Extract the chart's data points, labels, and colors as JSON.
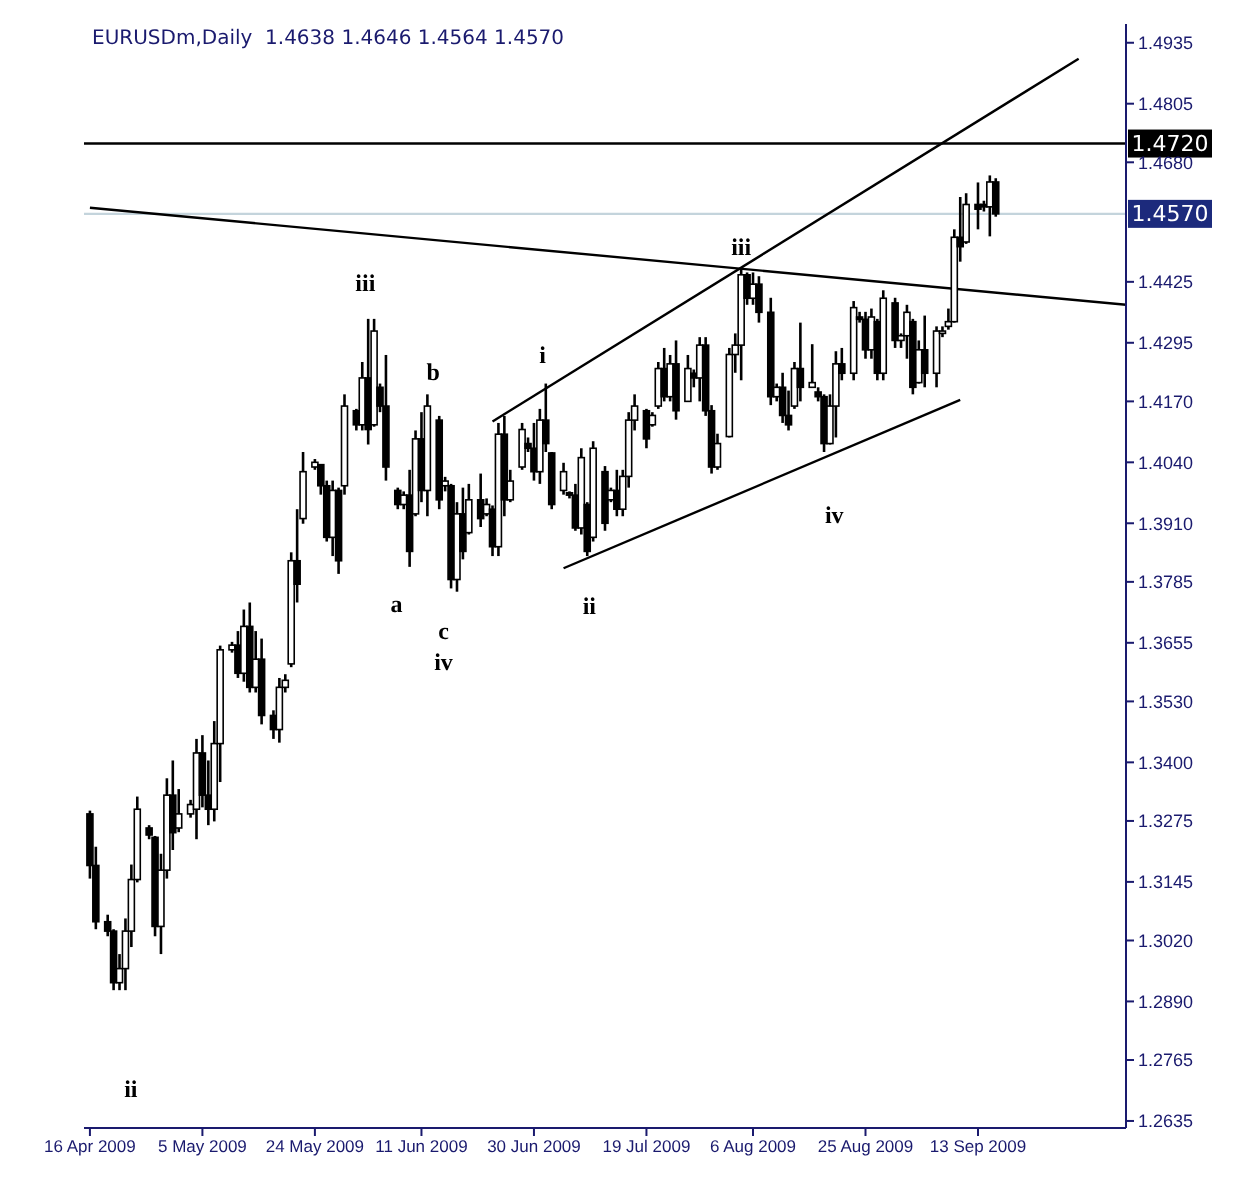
{
  "chart_data": {
    "type": "candlestick",
    "title": "EURUSDm,Daily  1.4638 1.4646 1.4564 1.4570",
    "marker": "none",
    "xlim": [
      "2009-04-15",
      "2009-10-08"
    ],
    "xticks": [
      {
        "value": "2009-04-16",
        "label": "16 Apr 2009"
      },
      {
        "value": "2009-05-05",
        "label": "5 May 2009"
      },
      {
        "value": "2009-05-24",
        "label": "24 May 2009"
      },
      {
        "value": "2009-06-11",
        "label": "11 Jun 2009"
      },
      {
        "value": "2009-06-30",
        "label": "30 Jun 2009"
      },
      {
        "value": "2009-07-19",
        "label": "19 Jul 2009"
      },
      {
        "value": "2009-08-06",
        "label": "6 Aug 2009"
      },
      {
        "value": "2009-08-25",
        "label": "25 Aug 2009"
      },
      {
        "value": "2009-09-13",
        "label": "13 Sep 2009"
      }
    ],
    "ylim": [
      1.262,
      1.4975
    ],
    "yticks": [
      1.4935,
      1.4805,
      {
        "value": 1.468,
        "label": "1.4680"
      },
      1.4425,
      1.4295,
      {
        "value": 1.417,
        "label": "1.4170"
      },
      {
        "value": 1.404,
        "label": "1.4040"
      },
      {
        "value": 1.391,
        "label": "1.3910"
      },
      1.3785,
      1.3655,
      {
        "value": 1.353,
        "label": "1.3530"
      },
      {
        "value": 1.34,
        "label": "1.3400"
      },
      1.3275,
      1.3145,
      {
        "value": 1.302,
        "label": "1.3020"
      },
      {
        "value": 1.289,
        "label": "1.2890"
      },
      1.2765,
      1.2635
    ],
    "series": [
      {
        "type": "candlestick",
        "color": "#000000",
        "x": [
          "2009-04-16",
          "2009-04-17",
          "2009-04-19",
          "2009-04-20",
          "2009-04-21",
          "2009-04-22",
          "2009-04-23",
          "2009-04-24",
          "2009-04-26",
          "2009-04-27",
          "2009-04-28",
          "2009-04-29",
          "2009-04-30",
          "2009-05-01",
          "2009-05-03",
          "2009-05-04",
          "2009-05-05",
          "2009-05-06",
          "2009-05-07",
          "2009-05-08",
          "2009-05-10",
          "2009-05-11",
          "2009-05-12",
          "2009-05-13",
          "2009-05-14",
          "2009-05-15",
          "2009-05-17",
          "2009-05-18",
          "2009-05-19",
          "2009-05-20",
          "2009-05-21",
          "2009-05-22",
          "2009-05-24",
          "2009-05-25",
          "2009-05-26",
          "2009-05-27",
          "2009-05-28",
          "2009-05-29",
          "2009-05-31",
          "2009-06-01",
          "2009-06-02",
          "2009-06-03",
          "2009-06-04",
          "2009-06-05",
          "2009-06-07",
          "2009-06-08",
          "2009-06-09",
          "2009-06-10",
          "2009-06-11",
          "2009-06-12",
          "2009-06-14",
          "2009-06-15",
          "2009-06-16",
          "2009-06-17",
          "2009-06-18",
          "2009-06-19",
          "2009-06-21",
          "2009-06-22",
          "2009-06-23",
          "2009-06-24",
          "2009-06-25",
          "2009-06-26",
          "2009-06-28",
          "2009-06-29",
          "2009-06-30",
          "2009-07-01",
          "2009-07-02",
          "2009-07-03",
          "2009-07-05",
          "2009-07-06",
          "2009-07-07",
          "2009-07-08",
          "2009-07-09",
          "2009-07-10",
          "2009-07-12",
          "2009-07-13",
          "2009-07-14",
          "2009-07-15",
          "2009-07-16",
          "2009-07-17",
          "2009-07-19",
          "2009-07-20",
          "2009-07-21",
          "2009-07-22",
          "2009-07-23",
          "2009-07-24",
          "2009-07-26",
          "2009-07-27",
          "2009-07-28",
          "2009-07-29",
          "2009-07-30",
          "2009-07-31",
          "2009-08-02",
          "2009-08-03",
          "2009-08-04",
          "2009-08-05",
          "2009-08-06",
          "2009-08-07",
          "2009-08-09",
          "2009-08-10",
          "2009-08-11",
          "2009-08-12",
          "2009-08-13",
          "2009-08-14",
          "2009-08-16",
          "2009-08-17",
          "2009-08-18",
          "2009-08-19",
          "2009-08-20",
          "2009-08-21",
          "2009-08-23",
          "2009-08-24",
          "2009-08-25",
          "2009-08-26",
          "2009-08-27",
          "2009-08-28",
          "2009-08-30",
          "2009-08-31",
          "2009-09-01",
          "2009-09-02",
          "2009-09-03",
          "2009-09-04",
          "2009-09-06",
          "2009-09-07",
          "2009-09-08",
          "2009-09-09",
          "2009-09-10",
          "2009-09-11",
          "2009-09-13",
          "2009-09-14",
          "2009-09-15",
          "2009-09-16"
        ],
        "ohlc": [
          [
            1.329,
            1.3297,
            1.3152,
            1.318
          ],
          [
            1.318,
            1.322,
            1.3044,
            1.306
          ],
          [
            1.306,
            1.3075,
            1.3029,
            1.304
          ],
          [
            1.304,
            1.3044,
            1.2914,
            1.293
          ],
          [
            1.293,
            1.2991,
            1.2914,
            1.296
          ],
          [
            1.296,
            1.3067,
            1.2914,
            1.304
          ],
          [
            1.304,
            1.3182,
            1.3006,
            1.315
          ],
          [
            1.315,
            1.3327,
            1.3144,
            1.33
          ],
          [
            1.326,
            1.3266,
            1.3236,
            1.3245
          ],
          [
            1.324,
            1.3243,
            1.3029,
            1.305
          ],
          [
            1.305,
            1.3205,
            1.2991,
            1.317
          ],
          [
            1.317,
            1.3366,
            1.3152,
            1.333
          ],
          [
            1.333,
            1.3404,
            1.3213,
            1.325
          ],
          [
            1.326,
            1.3343,
            1.3251,
            1.329
          ],
          [
            1.329,
            1.332,
            1.3282,
            1.331
          ],
          [
            1.33,
            1.345,
            1.3236,
            1.342
          ],
          [
            1.342,
            1.3458,
            1.3304,
            1.333
          ],
          [
            1.333,
            1.3404,
            1.3266,
            1.33
          ],
          [
            1.33,
            1.3488,
            1.3274,
            1.344
          ],
          [
            1.344,
            1.3649,
            1.3358,
            1.364
          ],
          [
            1.364,
            1.3657,
            1.3634,
            1.365
          ],
          [
            1.365,
            1.368,
            1.358,
            1.359
          ],
          [
            1.359,
            1.3726,
            1.3572,
            1.369
          ],
          [
            1.369,
            1.3741,
            1.3549,
            1.356
          ],
          [
            1.356,
            1.368,
            1.3549,
            1.362
          ],
          [
            1.362,
            1.3664,
            1.3481,
            1.35
          ],
          [
            1.35,
            1.3511,
            1.345,
            1.347
          ],
          [
            1.347,
            1.358,
            1.3442,
            1.356
          ],
          [
            1.356,
            1.3588,
            1.3549,
            1.3575
          ],
          [
            1.361,
            1.3848,
            1.3603,
            1.383
          ],
          [
            1.383,
            1.394,
            1.3741,
            1.378
          ],
          [
            1.392,
            1.4062,
            1.3909,
            1.402
          ],
          [
            1.403,
            1.4047,
            1.4024,
            1.404
          ],
          [
            1.4035,
            1.4035,
            1.3971,
            1.399
          ],
          [
            1.399,
            1.4001,
            1.3871,
            1.388
          ],
          [
            1.388,
            1.4001,
            1.384,
            1.398
          ],
          [
            1.398,
            1.3986,
            1.3802,
            1.383
          ],
          [
            1.399,
            1.4185,
            1.3971,
            1.416
          ],
          [
            1.415,
            1.4154,
            1.4108,
            1.412
          ],
          [
            1.412,
            1.4254,
            1.4108,
            1.422
          ],
          [
            1.422,
            1.4346,
            1.4078,
            1.411
          ],
          [
            1.412,
            1.4346,
            1.4116,
            1.432
          ],
          [
            1.42,
            1.4208,
            1.4147,
            1.416
          ],
          [
            1.416,
            1.4269,
            1.4001,
            1.403
          ],
          [
            1.398,
            1.3986,
            1.394,
            1.395
          ],
          [
            1.395,
            1.3978,
            1.394,
            1.397
          ],
          [
            1.397,
            1.4024,
            1.3817,
            1.385
          ],
          [
            1.393,
            1.4108,
            1.3925,
            1.409
          ],
          [
            1.409,
            1.4147,
            1.3955,
            1.398
          ],
          [
            1.398,
            1.4185,
            1.3925,
            1.416
          ],
          [
            1.413,
            1.4139,
            1.394,
            1.396
          ],
          [
            1.399,
            1.4009,
            1.3978,
            1.4
          ],
          [
            1.399,
            1.3994,
            1.3771,
            1.379
          ],
          [
            1.379,
            1.3955,
            1.3764,
            1.393
          ],
          [
            1.393,
            1.3986,
            1.3833,
            1.385
          ],
          [
            1.389,
            1.3994,
            1.3886,
            1.396
          ],
          [
            1.396,
            1.4016,
            1.3902,
            1.392
          ],
          [
            1.393,
            1.3963,
            1.3925,
            1.395
          ],
          [
            1.394,
            1.3948,
            1.384,
            1.386
          ],
          [
            1.386,
            1.4124,
            1.384,
            1.41
          ],
          [
            1.41,
            1.4139,
            1.3925,
            1.396
          ],
          [
            1.396,
            1.4024,
            1.3955,
            1.4
          ],
          [
            1.403,
            1.4124,
            1.4024,
            1.411
          ],
          [
            1.408,
            1.4093,
            1.4062,
            1.407
          ],
          [
            1.407,
            1.4124,
            1.4001,
            1.402
          ],
          [
            1.402,
            1.4154,
            1.3994,
            1.413
          ],
          [
            1.413,
            1.4208,
            1.4062,
            1.408
          ],
          [
            1.406,
            1.4062,
            1.394,
            1.395
          ],
          [
            1.398,
            1.4039,
            1.3971,
            1.402
          ],
          [
            1.3975,
            1.3978,
            1.3963,
            1.397
          ],
          [
            1.397,
            1.3994,
            1.3894,
            1.39
          ],
          [
            1.39,
            1.407,
            1.3886,
            1.405
          ],
          [
            1.395,
            1.3955,
            1.384,
            1.385
          ],
          [
            1.388,
            1.4085,
            1.3871,
            1.407
          ],
          [
            1.402,
            1.4032,
            1.3894,
            1.391
          ],
          [
            1.396,
            1.3986,
            1.3955,
            1.398
          ],
          [
            1.398,
            1.4024,
            1.3925,
            1.394
          ],
          [
            1.394,
            1.4024,
            1.3925,
            1.401
          ],
          [
            1.401,
            1.4147,
            1.3986,
            1.413
          ],
          [
            1.413,
            1.4185,
            1.4108,
            1.416
          ],
          [
            1.415,
            1.4154,
            1.407,
            1.409
          ],
          [
            1.412,
            1.4147,
            1.4116,
            1.414
          ],
          [
            1.416,
            1.4254,
            1.4154,
            1.424
          ],
          [
            1.424,
            1.4284,
            1.417,
            1.418
          ],
          [
            1.418,
            1.4269,
            1.417,
            1.425
          ],
          [
            1.425,
            1.43,
            1.4131,
            1.415
          ],
          [
            1.417,
            1.4269,
            1.417,
            1.424
          ],
          [
            1.423,
            1.4238,
            1.42,
            1.422
          ],
          [
            1.422,
            1.4307,
            1.417,
            1.429
          ],
          [
            1.429,
            1.4307,
            1.4139,
            1.415
          ],
          [
            1.415,
            1.4162,
            1.4016,
            1.403
          ],
          [
            1.403,
            1.4101,
            1.4024,
            1.408
          ],
          [
            1.4095,
            1.4284,
            1.4093,
            1.427
          ],
          [
            1.427,
            1.4315,
            1.4231,
            1.429
          ],
          [
            1.429,
            1.4453,
            1.4215,
            1.444
          ],
          [
            1.444,
            1.4445,
            1.4376,
            1.439
          ],
          [
            1.439,
            1.4445,
            1.4376,
            1.442
          ],
          [
            1.442,
            1.4437,
            1.4338,
            1.436
          ],
          [
            1.436,
            1.4391,
            1.4162,
            1.418
          ],
          [
            1.418,
            1.4208,
            1.417,
            1.42
          ],
          [
            1.42,
            1.4231,
            1.4124,
            1.414
          ],
          [
            1.414,
            1.4193,
            1.4108,
            1.412
          ],
          [
            1.416,
            1.4254,
            1.4154,
            1.424
          ],
          [
            1.424,
            1.4338,
            1.417,
            1.42
          ],
          [
            1.42,
            1.4292,
            1.42,
            1.421
          ],
          [
            1.419,
            1.42,
            1.417,
            1.418
          ],
          [
            1.418,
            1.4185,
            1.4062,
            1.408
          ],
          [
            1.408,
            1.4185,
            1.4078,
            1.416
          ],
          [
            1.416,
            1.4277,
            1.4093,
            1.425
          ],
          [
            1.425,
            1.4284,
            1.4215,
            1.423
          ],
          [
            1.423,
            1.4384,
            1.4215,
            1.437
          ],
          [
            1.435,
            1.4361,
            1.4338,
            1.4345
          ],
          [
            1.4345,
            1.4361,
            1.4261,
            1.428
          ],
          [
            1.428,
            1.4368,
            1.4261,
            1.435
          ],
          [
            1.434,
            1.4346,
            1.4215,
            1.423
          ],
          [
            1.423,
            1.4407,
            1.4215,
            1.439
          ],
          [
            1.438,
            1.4391,
            1.4284,
            1.43
          ],
          [
            1.43,
            1.4315,
            1.4284,
            1.431
          ],
          [
            1.431,
            1.4376,
            1.4261,
            1.436
          ],
          [
            1.434,
            1.4346,
            1.4185,
            1.42
          ],
          [
            1.421,
            1.43,
            1.4208,
            1.428
          ],
          [
            1.428,
            1.4353,
            1.42,
            1.423
          ],
          [
            1.423,
            1.433,
            1.42,
            1.432
          ],
          [
            1.4315,
            1.433,
            1.4307,
            1.432
          ],
          [
            1.433,
            1.4368,
            1.4323,
            1.434
          ],
          [
            1.434,
            1.4537,
            1.4338,
            1.452
          ],
          [
            1.452,
            1.4606,
            1.4468,
            1.45
          ],
          [
            1.451,
            1.4614,
            1.4506,
            1.459
          ],
          [
            1.459,
            1.4637,
            1.4537,
            1.458
          ],
          [
            1.459,
            1.4598,
            1.4575,
            1.4585
          ],
          [
            1.4585,
            1.4652,
            1.4522,
            1.4638
          ],
          [
            1.4638,
            1.4646,
            1.4564,
            1.457
          ]
        ]
      },
      {
        "type": "line",
        "color": "#000000",
        "x": [
          "2009-04-16",
          "2009-10-08"
        ],
        "values": [
          1.4583,
          1.4376
        ]
      },
      {
        "type": "line",
        "color": "#000000",
        "x": [
          "2009-06-23",
          "2009-09-30"
        ],
        "values": [
          1.4127,
          1.4901
        ]
      },
      {
        "type": "line",
        "color": "#000000",
        "x": [
          "2009-07-05",
          "2009-09-10"
        ],
        "values": [
          1.3814,
          1.4173
        ]
      }
    ],
    "ref_lines": [
      {
        "axis": "y",
        "value": 1.472,
        "label": "1.4720",
        "color": "#000000"
      },
      {
        "axis": "y",
        "value": 1.457,
        "label": "1.4570",
        "color": "#c4d4dc"
      }
    ],
    "annotations": [
      "ii",
      "iii",
      "b",
      "a",
      "c",
      "iv",
      "i",
      "ii",
      {
        "text": "iii",
        "x": "2009-08-04",
        "y": 1.4453
      },
      "iv"
    ]
  }
}
